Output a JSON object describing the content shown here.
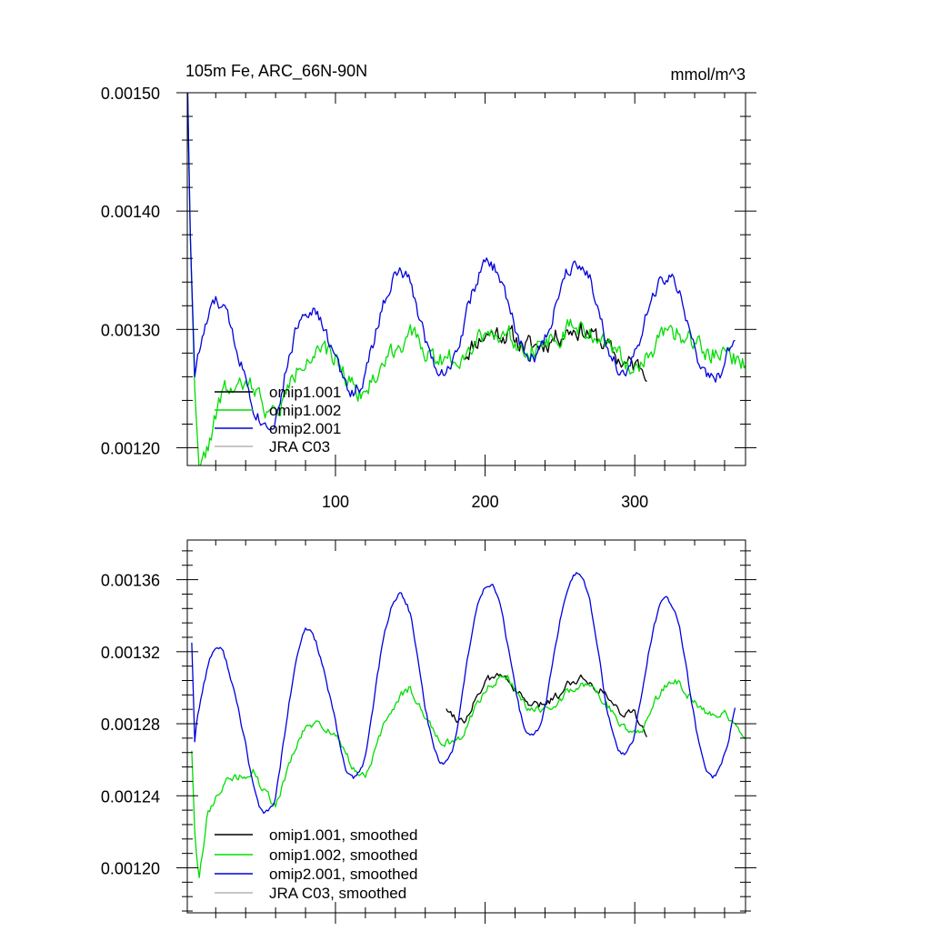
{
  "chart_data": [
    {
      "type": "line",
      "title": "105m Fe, ARC_66N-90N",
      "units": "mmol/m^3",
      "xlim": [
        1,
        374
      ],
      "ylim": [
        0.001185,
        0.0015
      ],
      "x_ticks": [
        100,
        200,
        300
      ],
      "x_tick_labels": [
        "100",
        "200",
        "300"
      ],
      "y_ticks": [
        0.0012,
        0.0013,
        0.0014,
        0.0015
      ],
      "y_tick_labels": [
        "0.00120",
        "0.00130",
        "0.00140",
        "0.00150"
      ],
      "legend": [
        {
          "label": "omip1.001",
          "color": "#000000"
        },
        {
          "label": "omip1.002",
          "color": "#00dd00"
        },
        {
          "label": "omip2.001",
          "color": "#0000dd"
        },
        {
          "label": "JRA C03",
          "color": "#b4b4b4"
        }
      ],
      "series": [
        {
          "name": "omip1.001",
          "color": "#000000",
          "start": 186,
          "end": 308,
          "period": 60,
          "phase": -10,
          "amplitude": 8.5e-06,
          "noise": 1.6e-05,
          "seed": 11,
          "trend": [
            [
              186,
              0.001278
            ],
            [
              215,
              0.001296
            ],
            [
              250,
              0.001292
            ],
            [
              280,
              0.001292
            ],
            [
              308,
              0.001266
            ]
          ]
        },
        {
          "name": "omip1.002",
          "color": "#00dd00",
          "start": 1,
          "end": 374,
          "period": 60,
          "phase": -10,
          "amplitude": 8.5e-06,
          "noise": 1.6e-05,
          "seed": 22,
          "trend": [
            [
              1,
              0.00152
            ],
            [
              3,
              0.00138
            ],
            [
              6,
              0.00125
            ],
            [
              9,
              0.00117
            ],
            [
              14,
              0.00119
            ],
            [
              25,
              0.00124
            ],
            [
              45,
              0.00126
            ],
            [
              60,
              0.00123
            ],
            [
              80,
              0.00127
            ],
            [
              100,
              0.00128
            ],
            [
              120,
              0.00125
            ],
            [
              150,
              0.00129
            ],
            [
              185,
              0.00128
            ],
            [
              215,
              0.001296
            ],
            [
              250,
              0.001292
            ],
            [
              280,
              0.001292
            ],
            [
              305,
              0.001272
            ],
            [
              330,
              0.001293
            ],
            [
              360,
              0.001288
            ],
            [
              374,
              0.001262
            ]
          ]
        },
        {
          "name": "omip2.001",
          "color": "#0000dd",
          "start": 1,
          "end": 367,
          "period": 60,
          "phase": -10,
          "amplitude": 3.8e-05,
          "noise": 1.2e-05,
          "seed": 33,
          "trend": [
            [
              1,
              0.00152
            ],
            [
              3,
              0.00138
            ],
            [
              6,
              0.00126
            ],
            [
              20,
              0.001285
            ],
            [
              40,
              0.00128
            ],
            [
              60,
              0.001245
            ],
            [
              80,
              0.00128
            ],
            [
              100,
              0.001295
            ],
            [
              120,
              0.00128
            ],
            [
              150,
              0.00132
            ],
            [
              180,
              0.001296
            ],
            [
              210,
              0.001325
            ],
            [
              240,
              0.00131
            ],
            [
              270,
              0.001325
            ],
            [
              300,
              0.001295
            ],
            [
              330,
              0.00131
            ],
            [
              367,
              0.001285
            ]
          ]
        },
        {
          "name": "JRA C03",
          "color": "#b4b4b4",
          "start": 0,
          "end": 0,
          "period": 60,
          "phase": 0,
          "amplitude": 0,
          "noise": 0,
          "seed": 44,
          "trend": []
        }
      ]
    },
    {
      "type": "line",
      "title": "",
      "units": "",
      "xlim": [
        1,
        374
      ],
      "ylim": [
        0.001175,
        0.001382
      ],
      "x_ticks": [
        100,
        200,
        300
      ],
      "x_tick_labels": [
        "",
        "",
        ""
      ],
      "y_ticks": [
        0.0012,
        0.00124,
        0.00128,
        0.00132,
        0.00136
      ],
      "y_tick_labels": [
        "0.00120",
        "0.00124",
        "0.00128",
        "0.00132",
        "0.00136"
      ],
      "legend": [
        {
          "label": "omip1.001, smoothed",
          "color": "#000000"
        },
        {
          "label": "omip1.002, smoothed",
          "color": "#00dd00"
        },
        {
          "label": "omip2.001, smoothed",
          "color": "#0000dd"
        },
        {
          "label": "JRA C03, smoothed",
          "color": "#b4b4b4"
        }
      ],
      "series": [
        {
          "name": "omip1.001, smoothed",
          "color": "#000000",
          "start": 174,
          "end": 308,
          "period": 60,
          "phase": -10,
          "amplitude": 9.5e-06,
          "noise": 4.5e-06,
          "seed": 55,
          "trend": [
            [
              174,
              0.001298
            ],
            [
              186,
              0.00128
            ],
            [
              215,
              0.001306
            ],
            [
              250,
              0.001292
            ],
            [
              280,
              0.001302
            ],
            [
              300,
              0.001292
            ],
            [
              308,
              0.001268
            ]
          ]
        },
        {
          "name": "omip1.002, smoothed",
          "color": "#00dd00",
          "start": 4,
          "end": 374,
          "period": 60,
          "phase": -10,
          "amplitude": 9.5e-06,
          "noise": 4.5e-06,
          "seed": 66,
          "trend": [
            [
              4,
              0.001265
            ],
            [
              6,
              0.00122
            ],
            [
              9,
              0.00119
            ],
            [
              14,
              0.00122
            ],
            [
              25,
              0.001238
            ],
            [
              45,
              0.001262
            ],
            [
              60,
              0.00124
            ],
            [
              80,
              0.001268
            ],
            [
              100,
              0.00128
            ],
            [
              120,
              0.001255
            ],
            [
              150,
              0.001295
            ],
            [
              185,
              0.001272
            ],
            [
              215,
              0.001306
            ],
            [
              250,
              0.001288
            ],
            [
              280,
              0.001298
            ],
            [
              305,
              0.001278
            ],
            [
              330,
              0.001298
            ],
            [
              360,
              0.001292
            ],
            [
              374,
              0.001265
            ]
          ]
        },
        {
          "name": "omip2.001, smoothed",
          "color": "#0000dd",
          "start": 4,
          "end": 367,
          "period": 60,
          "phase": -10,
          "amplitude": 4.2e-05,
          "noise": 3e-06,
          "seed": 77,
          "trend": [
            [
              4,
              0.001325
            ],
            [
              6,
              0.00127
            ],
            [
              20,
              0.00128
            ],
            [
              40,
              0.00129
            ],
            [
              60,
              0.00126
            ],
            [
              80,
              0.00129
            ],
            [
              100,
              0.001302
            ],
            [
              120,
              0.001283
            ],
            [
              150,
              0.00132
            ],
            [
              180,
              0.001292
            ],
            [
              210,
              0.001326
            ],
            [
              240,
              0.00131
            ],
            [
              270,
              0.001327
            ],
            [
              300,
              0.001296
            ],
            [
              330,
              0.001312
            ],
            [
              367,
              0.001278
            ]
          ]
        },
        {
          "name": "JRA C03, smoothed",
          "color": "#b4b4b4",
          "start": 0,
          "end": 0,
          "period": 60,
          "phase": 0,
          "amplitude": 0,
          "noise": 0,
          "seed": 88,
          "trend": []
        }
      ]
    }
  ]
}
